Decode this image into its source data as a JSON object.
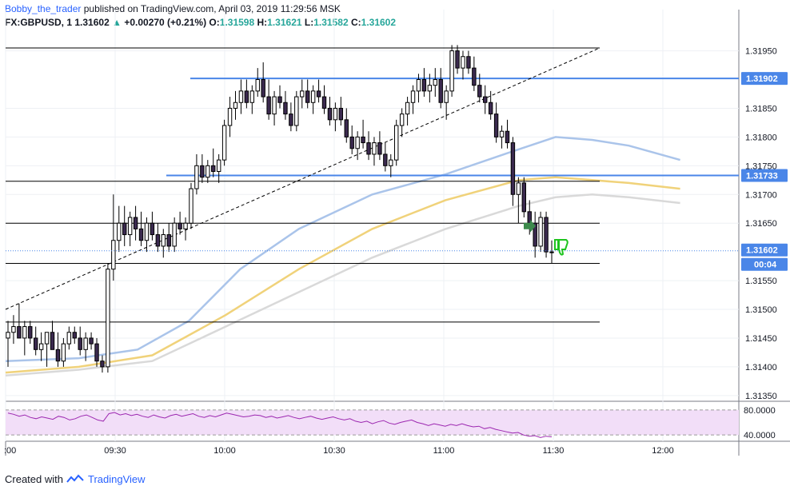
{
  "header": {
    "author": "Bobby_the_trader",
    "published_text": "published on TradingView.com, April 03, 2019 11:29:56 MSK",
    "symbol": "FX:GBPUSD, 1",
    "last": "1.31602",
    "change": "+0.00270 (+0.21%)",
    "o_label": "O:",
    "o_value": "1.31598",
    "h_label": "H:",
    "h_value": "1.31621",
    "l_label": "L:",
    "l_value": "1.31582",
    "c_label": "C:",
    "c_value": "1.31602"
  },
  "footer": {
    "created_with": "Created with",
    "brand": "TradingView"
  },
  "chart_data": {
    "type": "candlestick",
    "x_axis": {
      "ticks": [
        ":00",
        "09:30",
        "10:00",
        "10:30",
        "11:00",
        "11:30",
        "12:00"
      ],
      "grid": true
    },
    "y_axis": {
      "ticks": [
        "1.31950",
        "1.31850",
        "1.31800",
        "1.31750",
        "1.31700",
        "1.31650",
        "1.31550",
        "1.31500",
        "1.31450",
        "1.31400",
        "1.31350"
      ],
      "range": [
        1.3134,
        1.3198
      ],
      "grid": true
    },
    "price_labels": [
      {
        "value": "1.31902",
        "color": "#4a86e8"
      },
      {
        "value": "1.31733",
        "color": "#4a86e8"
      },
      {
        "value": "1.31602",
        "color": "#4a86e8"
      },
      {
        "value": "00:04",
        "color": "#4a86e8"
      }
    ],
    "horizontal_levels": {
      "blue": [
        1.31902,
        1.31733
      ],
      "black": [
        1.31955,
        1.31723,
        1.3165,
        1.3158,
        1.31478
      ]
    },
    "trendline": {
      "from": [
        0.0,
        1.315
      ],
      "to": [
        1.1,
        1.31955
      ],
      "style": "dashed"
    },
    "candles": [
      [
        1.3145,
        1.3148,
        1.314,
        1.3146
      ],
      [
        1.3146,
        1.3149,
        1.3144,
        1.3147
      ],
      [
        1.3147,
        1.3151,
        1.3145,
        1.3145
      ],
      [
        1.3145,
        1.3148,
        1.3142,
        1.3147
      ],
      [
        1.3147,
        1.3148,
        1.3144,
        1.3145
      ],
      [
        1.3145,
        1.3147,
        1.3142,
        1.3143
      ],
      [
        1.3143,
        1.3146,
        1.3141,
        1.3144
      ],
      [
        1.3144,
        1.3146,
        1.314,
        1.3146
      ],
      [
        1.3146,
        1.3148,
        1.3143,
        1.3143
      ],
      [
        1.3143,
        1.3146,
        1.314,
        1.3141
      ],
      [
        1.3141,
        1.3145,
        1.314,
        1.3144
      ],
      [
        1.3144,
        1.3147,
        1.3143,
        1.3146
      ],
      [
        1.3146,
        1.3147,
        1.3144,
        1.3145
      ],
      [
        1.3145,
        1.3147,
        1.3142,
        1.3143
      ],
      [
        1.3143,
        1.3146,
        1.3141,
        1.3145
      ],
      [
        1.3145,
        1.3146,
        1.3143,
        1.3144
      ],
      [
        1.3144,
        1.3145,
        1.314,
        1.3141
      ],
      [
        1.3141,
        1.3142,
        1.3139,
        1.314
      ],
      [
        1.314,
        1.3158,
        1.3139,
        1.3157
      ],
      [
        1.3157,
        1.317,
        1.3155,
        1.3162
      ],
      [
        1.3162,
        1.3168,
        1.316,
        1.3165
      ],
      [
        1.3165,
        1.3168,
        1.3161,
        1.3163
      ],
      [
        1.3163,
        1.3167,
        1.3161,
        1.3166
      ],
      [
        1.3166,
        1.3168,
        1.3162,
        1.3164
      ],
      [
        1.3164,
        1.3167,
        1.3161,
        1.3162
      ],
      [
        1.3162,
        1.3166,
        1.316,
        1.3165
      ],
      [
        1.3165,
        1.3167,
        1.3162,
        1.3163
      ],
      [
        1.3163,
        1.3165,
        1.316,
        1.3161
      ],
      [
        1.3161,
        1.3164,
        1.3159,
        1.3163
      ],
      [
        1.3163,
        1.3165,
        1.316,
        1.3161
      ],
      [
        1.3161,
        1.3166,
        1.316,
        1.3165
      ],
      [
        1.3165,
        1.3167,
        1.3163,
        1.3164
      ],
      [
        1.3164,
        1.3166,
        1.3162,
        1.3165
      ],
      [
        1.3165,
        1.3172,
        1.3164,
        1.3171
      ],
      [
        1.3171,
        1.3177,
        1.317,
        1.3175
      ],
      [
        1.3175,
        1.3177,
        1.3172,
        1.3173
      ],
      [
        1.3173,
        1.3176,
        1.3172,
        1.3175
      ],
      [
        1.3175,
        1.3178,
        1.3173,
        1.3174
      ],
      [
        1.3174,
        1.3177,
        1.3172,
        1.3176
      ],
      [
        1.3176,
        1.3183,
        1.3175,
        1.3182
      ],
      [
        1.3182,
        1.3187,
        1.318,
        1.3185
      ],
      [
        1.3185,
        1.3188,
        1.3183,
        1.3186
      ],
      [
        1.3186,
        1.319,
        1.3184,
        1.3188
      ],
      [
        1.3188,
        1.319,
        1.3185,
        1.3186
      ],
      [
        1.3186,
        1.3189,
        1.3184,
        1.3188
      ],
      [
        1.3188,
        1.3192,
        1.3187,
        1.319
      ],
      [
        1.319,
        1.3193,
        1.3186,
        1.3187
      ],
      [
        1.3187,
        1.319,
        1.3183,
        1.3184
      ],
      [
        1.3184,
        1.3188,
        1.3182,
        1.3187
      ],
      [
        1.3187,
        1.3189,
        1.3185,
        1.3186
      ],
      [
        1.3186,
        1.3188,
        1.3183,
        1.3184
      ],
      [
        1.3184,
        1.3186,
        1.3181,
        1.3182
      ],
      [
        1.3182,
        1.3188,
        1.3181,
        1.3187
      ],
      [
        1.3187,
        1.319,
        1.3185,
        1.3188
      ],
      [
        1.3188,
        1.319,
        1.3185,
        1.3186
      ],
      [
        1.3186,
        1.3189,
        1.3184,
        1.3188
      ],
      [
        1.3188,
        1.319,
        1.3186,
        1.3187
      ],
      [
        1.3187,
        1.3189,
        1.3184,
        1.3185
      ],
      [
        1.3185,
        1.3187,
        1.3182,
        1.3183
      ],
      [
        1.3183,
        1.3186,
        1.3181,
        1.3185
      ],
      [
        1.3185,
        1.3187,
        1.3182,
        1.3183
      ],
      [
        1.3183,
        1.3185,
        1.3179,
        1.318
      ],
      [
        1.318,
        1.3182,
        1.3177,
        1.3178
      ],
      [
        1.3178,
        1.3181,
        1.3176,
        1.318
      ],
      [
        1.318,
        1.3183,
        1.3178,
        1.3179
      ],
      [
        1.3179,
        1.3181,
        1.3176,
        1.3177
      ],
      [
        1.3177,
        1.318,
        1.3175,
        1.3179
      ],
      [
        1.3179,
        1.3181,
        1.3176,
        1.3177
      ],
      [
        1.3177,
        1.3179,
        1.3174,
        1.3175
      ],
      [
        1.3175,
        1.3177,
        1.3173,
        1.3176
      ],
      [
        1.3176,
        1.3183,
        1.3175,
        1.3182
      ],
      [
        1.3182,
        1.3185,
        1.318,
        1.3184
      ],
      [
        1.3184,
        1.3187,
        1.3182,
        1.3186
      ],
      [
        1.3186,
        1.3189,
        1.3184,
        1.3188
      ],
      [
        1.3188,
        1.3191,
        1.3186,
        1.319
      ],
      [
        1.319,
        1.3192,
        1.3187,
        1.3188
      ],
      [
        1.3188,
        1.3191,
        1.3186,
        1.3189
      ],
      [
        1.3189,
        1.3192,
        1.3187,
        1.319
      ],
      [
        1.319,
        1.3192,
        1.3185,
        1.3186
      ],
      [
        1.3186,
        1.3189,
        1.3183,
        1.3188
      ],
      [
        1.3188,
        1.3196,
        1.3187,
        1.3195
      ],
      [
        1.3195,
        1.3196,
        1.3191,
        1.3192
      ],
      [
        1.3192,
        1.3195,
        1.319,
        1.3194
      ],
      [
        1.3194,
        1.3195,
        1.3191,
        1.3192
      ],
      [
        1.3192,
        1.3194,
        1.3188,
        1.3189
      ],
      [
        1.3189,
        1.3191,
        1.3186,
        1.3187
      ],
      [
        1.3187,
        1.3189,
        1.3184,
        1.3186
      ],
      [
        1.3186,
        1.3188,
        1.3183,
        1.3184
      ],
      [
        1.3184,
        1.3186,
        1.3179,
        1.318
      ],
      [
        1.318,
        1.3182,
        1.3178,
        1.3181
      ],
      [
        1.3181,
        1.3183,
        1.3178,
        1.3179
      ],
      [
        1.3179,
        1.318,
        1.3168,
        1.317
      ],
      [
        1.317,
        1.3173,
        1.3165,
        1.3172
      ],
      [
        1.3172,
        1.3173,
        1.3166,
        1.3167
      ],
      [
        1.3167,
        1.3169,
        1.3163,
        1.3165
      ],
      [
        1.3165,
        1.3167,
        1.3159,
        1.3161
      ],
      [
        1.3161,
        1.3167,
        1.316,
        1.3166
      ],
      [
        1.3166,
        1.3167,
        1.3159,
        1.316
      ],
      [
        1.316,
        1.3162,
        1.3158,
        1.316
      ]
    ],
    "moving_averages": [
      {
        "color": "#aac4ea",
        "points": [
          [
            0,
            1.3141
          ],
          [
            0.1,
            1.31415
          ],
          [
            0.18,
            1.3143
          ],
          [
            0.25,
            1.3148
          ],
          [
            0.32,
            1.3157
          ],
          [
            0.4,
            1.3164
          ],
          [
            0.5,
            1.317
          ],
          [
            0.6,
            1.31735
          ],
          [
            0.68,
            1.3177
          ],
          [
            0.75,
            1.318
          ],
          [
            0.8,
            1.31795
          ],
          [
            0.85,
            1.31785
          ],
          [
            0.92,
            1.3176
          ]
        ]
      },
      {
        "color": "#f0d27a",
        "points": [
          [
            0,
            1.3139
          ],
          [
            0.1,
            1.314
          ],
          [
            0.2,
            1.3142
          ],
          [
            0.3,
            1.3149
          ],
          [
            0.4,
            1.3157
          ],
          [
            0.5,
            1.3164
          ],
          [
            0.6,
            1.3169
          ],
          [
            0.7,
            1.31725
          ],
          [
            0.75,
            1.3173
          ],
          [
            0.8,
            1.31725
          ],
          [
            0.85,
            1.3172
          ],
          [
            0.92,
            1.3171
          ]
        ]
      },
      {
        "color": "#d9d9d9",
        "points": [
          [
            0,
            1.31385
          ],
          [
            0.1,
            1.31395
          ],
          [
            0.2,
            1.3141
          ],
          [
            0.3,
            1.3147
          ],
          [
            0.4,
            1.3153
          ],
          [
            0.5,
            1.3159
          ],
          [
            0.6,
            1.3164
          ],
          [
            0.7,
            1.3168
          ],
          [
            0.75,
            1.31695
          ],
          [
            0.8,
            1.317
          ],
          [
            0.85,
            1.31695
          ],
          [
            0.92,
            1.31685
          ]
        ]
      }
    ],
    "rsi": {
      "ticks": [
        "80.0000",
        "40.0000"
      ],
      "range": [
        30,
        90
      ],
      "band": [
        40,
        80
      ],
      "line_color": "#9c27b0",
      "band_color": "#f2def8",
      "values": [
        75,
        73,
        70,
        72,
        68,
        66,
        69,
        67,
        65,
        70,
        68,
        64,
        66,
        70,
        72,
        68,
        64,
        62,
        74,
        76,
        72,
        74,
        71,
        73,
        70,
        68,
        72,
        69,
        67,
        71,
        73,
        70,
        72,
        74,
        70,
        68,
        71,
        69,
        72,
        75,
        73,
        71,
        69,
        70,
        72,
        71,
        68,
        70,
        67,
        69,
        71,
        68,
        66,
        68,
        70,
        67,
        65,
        67,
        69,
        66,
        64,
        66,
        62,
        60,
        62,
        58,
        61,
        63,
        59,
        57,
        60,
        62,
        64,
        60,
        58,
        55,
        58,
        56,
        54,
        57,
        55,
        58,
        55,
        53,
        54,
        50,
        52,
        49,
        47,
        45,
        43,
        44,
        40,
        38,
        39,
        36,
        38,
        37
      ]
    }
  }
}
